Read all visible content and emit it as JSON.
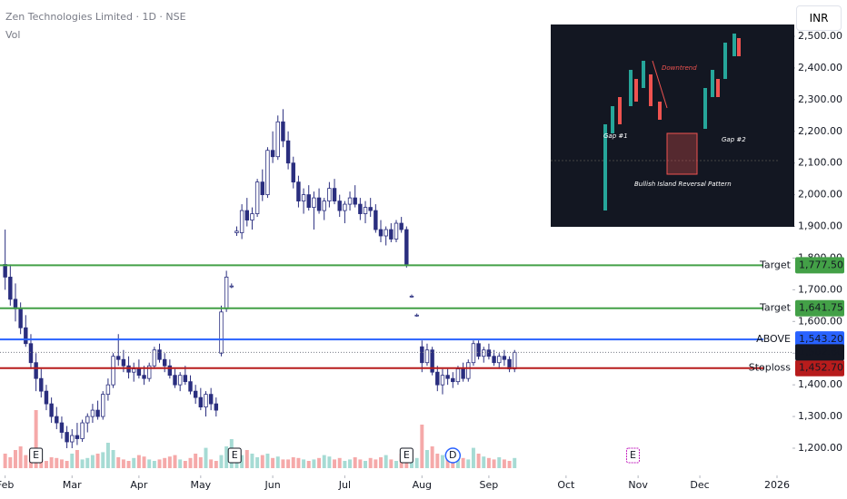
{
  "header": {
    "title": "Zen Technologies Limited · 1D · NSE",
    "volume_label": "Vol",
    "currency": "INR"
  },
  "inset": {
    "downtrend": "Downtrend",
    "gap1": "Gap #1",
    "gap2": "Gap #2",
    "pattern": "Bullish Island Reversal Pattern"
  },
  "chart_data": {
    "type": "candlestick",
    "up_color": "#2a2e7f",
    "down_color": "#2a2e7f",
    "volume_up_color": "#a6dbd4",
    "volume_down_color": "#f5a9a9",
    "xlim": [
      -1,
      153
    ],
    "xticks": [
      {
        "value": 0,
        "label": "Feb"
      },
      {
        "value": 13,
        "label": "Mar"
      },
      {
        "value": 26,
        "label": "Apr"
      },
      {
        "value": 38,
        "label": "May"
      },
      {
        "value": 52,
        "label": "Jun"
      },
      {
        "value": 66,
        "label": "Jul"
      },
      {
        "value": 81,
        "label": "Aug"
      },
      {
        "value": 94,
        "label": "Sep"
      },
      {
        "value": 109,
        "label": "Oct"
      },
      {
        "value": 123,
        "label": "Nov"
      },
      {
        "value": 135,
        "label": "Dec"
      },
      {
        "value": 150,
        "label": "2026"
      }
    ],
    "ylim": [
      1150,
      2550
    ],
    "yticks": [
      {
        "value": 1200,
        "label": "1,200.00"
      },
      {
        "value": 1300,
        "label": "1,300.00"
      },
      {
        "value": 1400,
        "label": "1,400.00"
      },
      {
        "value": 1500,
        "label": "1,500.00"
      },
      {
        "value": 1600,
        "label": "1,600.00"
      },
      {
        "value": 1700,
        "label": "1,700.00"
      },
      {
        "value": 1800,
        "label": "1,800.00"
      },
      {
        "value": 1900,
        "label": "1,900.00"
      },
      {
        "value": 2000,
        "label": "2,000.00"
      },
      {
        "value": 2100,
        "label": "2,100.00"
      },
      {
        "value": 2200,
        "label": "2,200.00"
      },
      {
        "value": 2300,
        "label": "2,300.00"
      },
      {
        "value": 2400,
        "label": "2,400.00"
      },
      {
        "value": 2500,
        "label": "2,500.00"
      }
    ],
    "ohlc": [
      [
        1780,
        1890,
        1700,
        1740
      ],
      [
        1740,
        1780,
        1650,
        1670
      ],
      [
        1670,
        1720,
        1600,
        1640
      ],
      [
        1640,
        1660,
        1560,
        1580
      ],
      [
        1580,
        1620,
        1520,
        1530
      ],
      [
        1530,
        1560,
        1450,
        1470
      ],
      [
        1470,
        1500,
        1380,
        1420
      ],
      [
        1420,
        1450,
        1360,
        1380
      ],
      [
        1380,
        1400,
        1320,
        1340
      ],
      [
        1340,
        1360,
        1280,
        1300
      ],
      [
        1300,
        1330,
        1260,
        1280
      ],
      [
        1280,
        1300,
        1230,
        1250
      ],
      [
        1250,
        1270,
        1200,
        1220
      ],
      [
        1220,
        1260,
        1200,
        1240
      ],
      [
        1240,
        1280,
        1210,
        1230
      ],
      [
        1230,
        1290,
        1220,
        1280
      ],
      [
        1280,
        1310,
        1250,
        1300
      ],
      [
        1300,
        1340,
        1280,
        1320
      ],
      [
        1320,
        1350,
        1290,
        1300
      ],
      [
        1300,
        1380,
        1290,
        1370
      ],
      [
        1370,
        1420,
        1350,
        1400
      ],
      [
        1400,
        1500,
        1390,
        1490
      ],
      [
        1490,
        1560,
        1460,
        1480
      ],
      [
        1480,
        1510,
        1440,
        1460
      ],
      [
        1460,
        1490,
        1420,
        1440
      ],
      [
        1440,
        1470,
        1410,
        1450
      ],
      [
        1450,
        1480,
        1420,
        1430
      ],
      [
        1430,
        1460,
        1400,
        1420
      ],
      [
        1420,
        1470,
        1410,
        1460
      ],
      [
        1460,
        1520,
        1450,
        1510
      ],
      [
        1510,
        1530,
        1470,
        1480
      ],
      [
        1480,
        1500,
        1440,
        1460
      ],
      [
        1460,
        1480,
        1420,
        1430
      ],
      [
        1430,
        1450,
        1390,
        1400
      ],
      [
        1400,
        1440,
        1380,
        1430
      ],
      [
        1430,
        1460,
        1400,
        1410
      ],
      [
        1410,
        1430,
        1370,
        1380
      ],
      [
        1380,
        1400,
        1340,
        1360
      ],
      [
        1360,
        1390,
        1320,
        1330
      ],
      [
        1330,
        1380,
        1300,
        1370
      ],
      [
        1370,
        1390,
        1320,
        1340
      ],
      [
        1340,
        1360,
        1300,
        1320
      ],
      [
        1500,
        1650,
        1490,
        1630
      ],
      [
        1640,
        1760,
        1630,
        1740
      ],
      [
        1710,
        1720,
        1705,
        1712
      ],
      [
        1880,
        1900,
        1870,
        1885
      ],
      [
        1880,
        1970,
        1860,
        1950
      ],
      [
        1950,
        1990,
        1900,
        1920
      ],
      [
        1920,
        1960,
        1890,
        1940
      ],
      [
        1940,
        2050,
        1930,
        2040
      ],
      [
        2040,
        2080,
        1980,
        2000
      ],
      [
        2000,
        2150,
        1990,
        2140
      ],
      [
        2140,
        2200,
        2100,
        2120
      ],
      [
        2120,
        2250,
        2110,
        2230
      ],
      [
        2230,
        2270,
        2150,
        2170
      ],
      [
        2170,
        2200,
        2080,
        2100
      ],
      [
        2100,
        2120,
        2020,
        2040
      ],
      [
        2040,
        2060,
        1960,
        1980
      ],
      [
        1980,
        2020,
        1940,
        2000
      ],
      [
        2000,
        2030,
        1950,
        1960
      ],
      [
        1960,
        2010,
        1890,
        1990
      ],
      [
        1990,
        2020,
        1940,
        1950
      ],
      [
        1950,
        1990,
        1920,
        1980
      ],
      [
        1980,
        2040,
        1960,
        2020
      ],
      [
        2020,
        2050,
        1970,
        1980
      ],
      [
        1980,
        2000,
        1930,
        1950
      ],
      [
        1950,
        1980,
        1910,
        1970
      ],
      [
        1970,
        2010,
        1950,
        1990
      ],
      [
        1990,
        2030,
        1960,
        1970
      ],
      [
        1970,
        1990,
        1920,
        1940
      ],
      [
        1940,
        1980,
        1910,
        1960
      ],
      [
        1960,
        1990,
        1930,
        1950
      ],
      [
        1950,
        1970,
        1880,
        1890
      ],
      [
        1890,
        1920,
        1850,
        1870
      ],
      [
        1870,
        1900,
        1840,
        1890
      ],
      [
        1890,
        1910,
        1850,
        1860
      ],
      [
        1860,
        1920,
        1850,
        1910
      ],
      [
        1910,
        1930,
        1880,
        1890
      ],
      [
        1890,
        1900,
        1770,
        1780
      ],
      [
        1680,
        1685,
        1675,
        1680
      ],
      [
        1620,
        1625,
        1615,
        1620
      ],
      [
        1520,
        1540,
        1440,
        1470
      ],
      [
        1470,
        1530,
        1460,
        1510
      ],
      [
        1510,
        1520,
        1430,
        1440
      ],
      [
        1440,
        1460,
        1380,
        1400
      ],
      [
        1400,
        1450,
        1370,
        1430
      ],
      [
        1430,
        1450,
        1400,
        1420
      ],
      [
        1420,
        1440,
        1390,
        1410
      ],
      [
        1410,
        1460,
        1400,
        1450
      ],
      [
        1450,
        1470,
        1410,
        1420
      ],
      [
        1420,
        1480,
        1410,
        1470
      ],
      [
        1470,
        1540,
        1460,
        1530
      ],
      [
        1530,
        1540,
        1480,
        1490
      ],
      [
        1490,
        1520,
        1470,
        1510
      ],
      [
        1510,
        1530,
        1480,
        1490
      ],
      [
        1490,
        1510,
        1460,
        1470
      ],
      [
        1470,
        1500,
        1450,
        1490
      ],
      [
        1490,
        1510,
        1460,
        1480
      ],
      [
        1480,
        1490,
        1440,
        1450
      ],
      [
        1450,
        1510,
        1440,
        1502.6
      ]
    ],
    "volume": [
      20,
      15,
      25,
      30,
      18,
      22,
      80,
      12,
      10,
      15,
      14,
      12,
      10,
      20,
      25,
      12,
      14,
      18,
      20,
      22,
      35,
      25,
      15,
      12,
      10,
      14,
      18,
      16,
      12,
      10,
      12,
      14,
      16,
      18,
      12,
      10,
      14,
      20,
      15,
      28,
      12,
      10,
      18,
      30,
      40,
      22,
      18,
      25,
      20,
      15,
      18,
      20,
      14,
      16,
      12,
      12,
      15,
      14,
      12,
      10,
      12,
      14,
      18,
      16,
      12,
      14,
      10,
      12,
      15,
      12,
      10,
      14,
      12,
      15,
      18,
      12,
      10,
      20,
      18,
      12,
      14,
      60,
      25,
      30,
      20,
      18,
      15,
      22,
      18,
      14,
      12,
      28,
      20,
      16,
      14,
      12,
      15,
      12,
      10,
      14
    ],
    "volume_lim": [
      0,
      100
    ],
    "levels": [
      {
        "label": "Target",
        "value": 1777.5,
        "value_label": "1,777.50",
        "color": "#43a047"
      },
      {
        "label": "Target",
        "value": 1641.75,
        "value_label": "1,641.75",
        "color": "#43a047"
      },
      {
        "label": "ABOVE",
        "value": 1543.2,
        "value_label": "1,543.20",
        "color": "#2962ff"
      },
      {
        "label": "Stoploss",
        "value": 1452.7,
        "value_label": "1,452.70",
        "color": "#b71c1c"
      }
    ],
    "last_price": {
      "value": 1502.6,
      "value_label": "1,502.60",
      "color": "#131722"
    },
    "events": [
      {
        "x": 6,
        "label": "E"
      },
      {
        "x": 44.6,
        "label": "E"
      },
      {
        "x": 78,
        "label": "E"
      },
      {
        "x": 87,
        "label": "D"
      },
      {
        "x": 122,
        "label": "E"
      }
    ]
  }
}
